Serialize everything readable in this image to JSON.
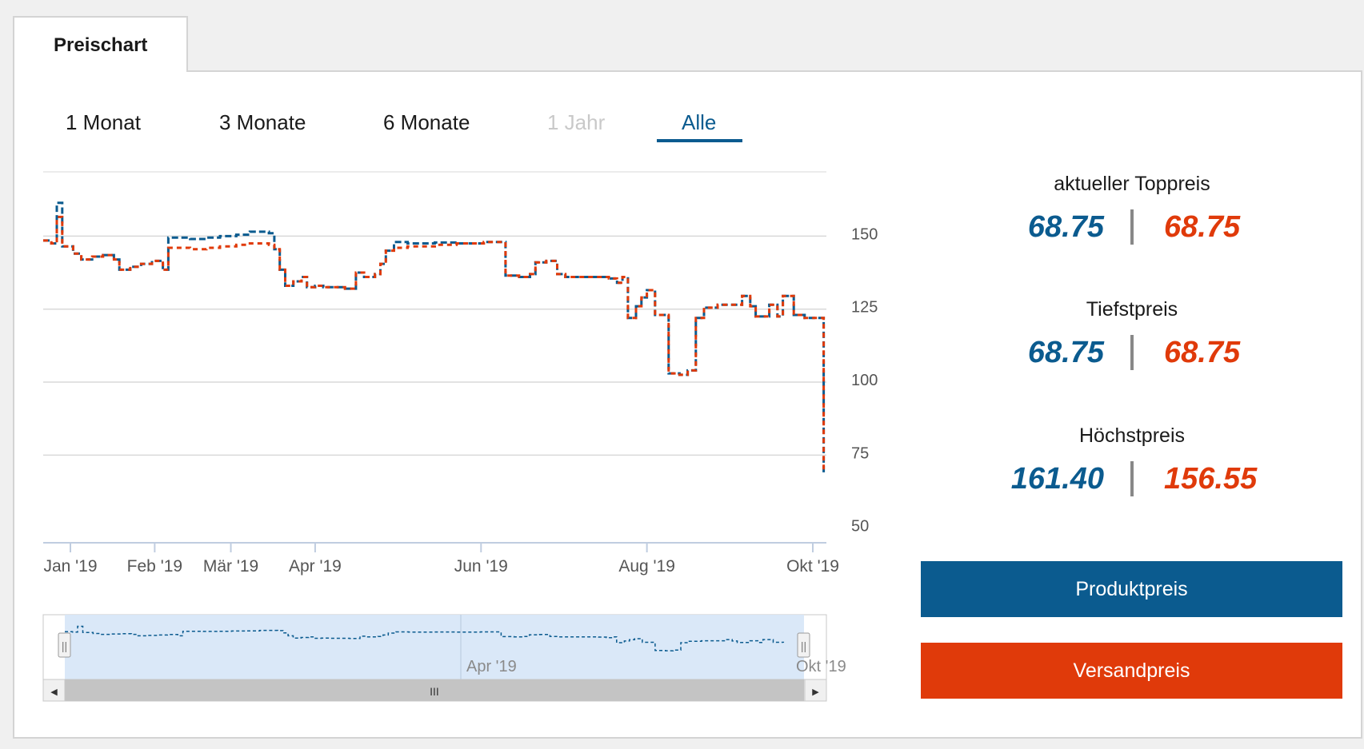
{
  "tab": {
    "label": "Preischart"
  },
  "range": {
    "buttons": [
      {
        "label": "1 Monat",
        "state": "normal"
      },
      {
        "label": "3 Monate",
        "state": "normal"
      },
      {
        "label": "6 Monate",
        "state": "normal"
      },
      {
        "label": "1 Jahr",
        "state": "disabled"
      },
      {
        "label": "Alle",
        "state": "active"
      }
    ]
  },
  "stats": {
    "current": {
      "title": "aktueller Toppreis",
      "product": "68.75",
      "shipping": "68.75"
    },
    "lowest": {
      "title": "Tiefstpreis",
      "product": "68.75",
      "shipping": "68.75"
    },
    "highest": {
      "title": "Höchstpreis",
      "product": "161.40",
      "shipping": "156.55"
    }
  },
  "legend": {
    "product_label": "Produktpreis",
    "shipping_label": "Versandpreis"
  },
  "colors": {
    "product": "#0b5b8f",
    "shipping": "#e03a0a",
    "disabled": "#c9c9c9",
    "grid": "#d9d9d9",
    "navigator_fill": "#d6e6f7",
    "scrollbar": "#c4c4c4"
  },
  "navigator": {
    "labels": [
      "Apr '19",
      "Okt '19"
    ],
    "scroll_thumb_glyph": "III",
    "scroll_left_glyph": "◀",
    "scroll_right_glyph": "▶",
    "handle_glyph": "||"
  },
  "chart_data": {
    "type": "line",
    "step": true,
    "title": "",
    "xlabel": "",
    "ylabel": "",
    "y_tick_labels": [
      "150",
      "125",
      "100",
      "75",
      "50"
    ],
    "y_ticks": [
      150,
      125,
      100,
      75,
      50
    ],
    "ylim": [
      45,
      172
    ],
    "x_tick_labels": [
      "Jan '19",
      "Feb '19",
      "Mär '19",
      "Apr '19",
      "Jun '19",
      "Aug '19",
      "Okt '19"
    ],
    "x_ticks": [
      "2019-01-01",
      "2019-02-01",
      "2019-03-01",
      "2019-04-01",
      "2019-06-01",
      "2019-08-01",
      "2019-10-01"
    ],
    "xlim": [
      "2018-12-22",
      "2019-10-06"
    ],
    "grid": true,
    "legend_position": "right",
    "series": [
      {
        "name": "Produktpreis",
        "color": "#0b5b8f",
        "dash": "dashed",
        "points": [
          [
            "2018-12-22",
            148.5
          ],
          [
            "2018-12-25",
            147.5
          ],
          [
            "2018-12-27",
            161.4
          ],
          [
            "2018-12-29",
            146.5
          ],
          [
            "2019-01-02",
            144
          ],
          [
            "2019-01-05",
            142
          ],
          [
            "2019-01-09",
            143
          ],
          [
            "2019-01-13",
            143.5
          ],
          [
            "2019-01-17",
            142
          ],
          [
            "2019-01-19",
            138.5
          ],
          [
            "2019-01-23",
            139.5
          ],
          [
            "2019-01-27",
            140.5
          ],
          [
            "2019-01-31",
            141.5
          ],
          [
            "2019-02-04",
            138.5
          ],
          [
            "2019-02-06",
            149.5
          ],
          [
            "2019-02-14",
            149
          ],
          [
            "2019-02-20",
            149.5
          ],
          [
            "2019-02-25",
            150
          ],
          [
            "2019-03-03",
            150.5
          ],
          [
            "2019-03-08",
            151.5
          ],
          [
            "2019-03-15",
            151
          ],
          [
            "2019-03-17",
            145.5
          ],
          [
            "2019-03-19",
            138.5
          ],
          [
            "2019-03-21",
            133
          ],
          [
            "2019-03-24",
            134.5
          ],
          [
            "2019-03-27",
            136
          ],
          [
            "2019-03-29",
            132.5
          ],
          [
            "2019-04-01",
            133
          ],
          [
            "2019-04-04",
            132.5
          ],
          [
            "2019-04-12",
            132
          ],
          [
            "2019-04-16",
            137.5
          ],
          [
            "2019-04-19",
            136
          ],
          [
            "2019-04-23",
            137
          ],
          [
            "2019-04-25",
            140.5
          ],
          [
            "2019-04-27",
            145
          ],
          [
            "2019-04-30",
            148
          ],
          [
            "2019-05-05",
            147.5
          ],
          [
            "2019-05-15",
            147.8
          ],
          [
            "2019-05-23",
            147.5
          ],
          [
            "2019-06-02",
            148
          ],
          [
            "2019-06-10",
            136.5
          ],
          [
            "2019-06-15",
            136
          ],
          [
            "2019-06-19",
            137
          ],
          [
            "2019-06-21",
            141
          ],
          [
            "2019-06-25",
            141.5
          ],
          [
            "2019-06-29",
            137
          ],
          [
            "2019-07-02",
            136
          ],
          [
            "2019-07-12",
            136
          ],
          [
            "2019-07-18",
            135.5
          ],
          [
            "2019-07-21",
            134
          ],
          [
            "2019-07-23",
            136
          ],
          [
            "2019-07-25",
            122
          ],
          [
            "2019-07-28",
            126
          ],
          [
            "2019-07-30",
            129
          ],
          [
            "2019-08-01",
            131.5
          ],
          [
            "2019-08-04",
            123
          ],
          [
            "2019-08-09",
            103
          ],
          [
            "2019-08-13",
            102.5
          ],
          [
            "2019-08-16",
            104
          ],
          [
            "2019-08-19",
            122
          ],
          [
            "2019-08-22",
            125.5
          ],
          [
            "2019-08-27",
            126.5
          ],
          [
            "2019-08-31",
            126.5
          ],
          [
            "2019-09-05",
            129.5
          ],
          [
            "2019-09-08",
            126
          ],
          [
            "2019-09-10",
            122.5
          ],
          [
            "2019-09-15",
            126.5
          ],
          [
            "2019-09-18",
            122.5
          ],
          [
            "2019-09-20",
            129.5
          ],
          [
            "2019-09-24",
            123
          ],
          [
            "2019-09-28",
            122
          ],
          [
            "2019-10-05",
            68.75
          ]
        ]
      },
      {
        "name": "Versandpreis",
        "color": "#e03a0a",
        "dash": "dashed",
        "points": [
          [
            "2018-12-22",
            148.5
          ],
          [
            "2018-12-25",
            147.5
          ],
          [
            "2018-12-27",
            156.55
          ],
          [
            "2018-12-29",
            146.5
          ],
          [
            "2019-01-02",
            144
          ],
          [
            "2019-01-05",
            142
          ],
          [
            "2019-01-09",
            143
          ],
          [
            "2019-01-13",
            143.5
          ],
          [
            "2019-01-17",
            142
          ],
          [
            "2019-01-19",
            138.5
          ],
          [
            "2019-01-23",
            139.5
          ],
          [
            "2019-01-27",
            140.5
          ],
          [
            "2019-01-31",
            141.5
          ],
          [
            "2019-02-04",
            138.5
          ],
          [
            "2019-02-06",
            146
          ],
          [
            "2019-02-14",
            145.5
          ],
          [
            "2019-02-20",
            146
          ],
          [
            "2019-02-25",
            146.5
          ],
          [
            "2019-03-03",
            147
          ],
          [
            "2019-03-08",
            147.5
          ],
          [
            "2019-03-15",
            147
          ],
          [
            "2019-03-17",
            145.5
          ],
          [
            "2019-03-19",
            138.5
          ],
          [
            "2019-03-21",
            133
          ],
          [
            "2019-03-24",
            134.5
          ],
          [
            "2019-03-27",
            136
          ],
          [
            "2019-03-29",
            132.5
          ],
          [
            "2019-04-01",
            133
          ],
          [
            "2019-04-04",
            132.5
          ],
          [
            "2019-04-12",
            132
          ],
          [
            "2019-04-16",
            137.5
          ],
          [
            "2019-04-19",
            136
          ],
          [
            "2019-04-23",
            137
          ],
          [
            "2019-04-25",
            140.5
          ],
          [
            "2019-04-27",
            145
          ],
          [
            "2019-04-30",
            146
          ],
          [
            "2019-05-05",
            146.5
          ],
          [
            "2019-05-15",
            147
          ],
          [
            "2019-05-23",
            147.5
          ],
          [
            "2019-06-02",
            148
          ],
          [
            "2019-06-10",
            136.5
          ],
          [
            "2019-06-15",
            136
          ],
          [
            "2019-06-19",
            137
          ],
          [
            "2019-06-21",
            141
          ],
          [
            "2019-06-25",
            141.5
          ],
          [
            "2019-06-29",
            137
          ],
          [
            "2019-07-02",
            136
          ],
          [
            "2019-07-12",
            136
          ],
          [
            "2019-07-18",
            135.5
          ],
          [
            "2019-07-21",
            134
          ],
          [
            "2019-07-23",
            136
          ],
          [
            "2019-07-25",
            122
          ],
          [
            "2019-07-28",
            126
          ],
          [
            "2019-07-30",
            129
          ],
          [
            "2019-08-01",
            131.5
          ],
          [
            "2019-08-04",
            123
          ],
          [
            "2019-08-09",
            103
          ],
          [
            "2019-08-13",
            102.5
          ],
          [
            "2019-08-16",
            104
          ],
          [
            "2019-08-19",
            122
          ],
          [
            "2019-08-22",
            125.5
          ],
          [
            "2019-08-27",
            126.5
          ],
          [
            "2019-08-31",
            126.5
          ],
          [
            "2019-09-05",
            129.5
          ],
          [
            "2019-09-08",
            126
          ],
          [
            "2019-09-10",
            122.5
          ],
          [
            "2019-09-15",
            126.5
          ],
          [
            "2019-09-18",
            122.5
          ],
          [
            "2019-09-20",
            129.5
          ],
          [
            "2019-09-24",
            123
          ],
          [
            "2019-09-28",
            122
          ],
          [
            "2019-10-05",
            68.75
          ]
        ]
      }
    ]
  }
}
